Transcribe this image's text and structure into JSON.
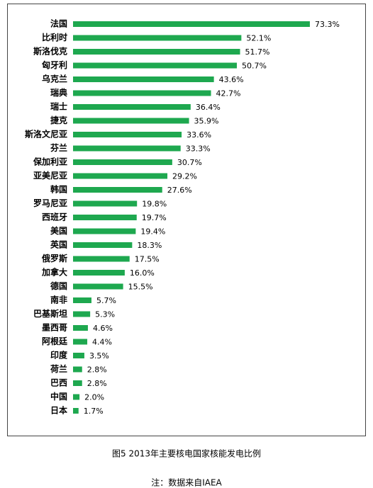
{
  "chart_data": {
    "type": "bar",
    "orientation": "horizontal",
    "color": "#1ea84f",
    "categories": [
      "法国",
      "比利时",
      "斯洛伐克",
      "匈牙利",
      "乌克兰",
      "瑞典",
      "瑞士",
      "捷克",
      "斯洛文尼亚",
      "芬兰",
      "保加利亚",
      "亚美尼亚",
      "韩国",
      "罗马尼亚",
      "西班牙",
      "美国",
      "英国",
      "俄罗斯",
      "加拿大",
      "德国",
      "南非",
      "巴基斯坦",
      "墨西哥",
      "阿根廷",
      "印度",
      "荷兰",
      "巴西",
      "中国",
      "日本"
    ],
    "values": [
      73.3,
      52.1,
      51.7,
      50.7,
      43.6,
      42.7,
      36.4,
      35.9,
      33.6,
      33.3,
      30.7,
      29.2,
      27.6,
      19.8,
      19.7,
      19.4,
      18.3,
      17.5,
      16.0,
      15.5,
      5.7,
      5.3,
      4.6,
      4.4,
      3.5,
      2.8,
      2.8,
      2.0,
      1.7
    ],
    "value_labels": [
      "73.3%",
      "52.1%",
      "51.7%",
      "50.7%",
      "43.6%",
      "42.7%",
      "36.4%",
      "35.9%",
      "33.6%",
      "33.3%",
      "30.7%",
      "29.2%",
      "27.6%",
      "19.8%",
      "19.7%",
      "19.4%",
      "18.3%",
      "17.5%",
      "16.0%",
      "15.5%",
      "5.7%",
      "5.3%",
      "4.6%",
      "4.4%",
      "3.5%",
      "2.8%",
      "2.8%",
      "2.0%",
      "1.7%"
    ],
    "caption": "图5 2013年主要核电国家核能发电比例",
    "note": "注：数据来自IAEA"
  }
}
